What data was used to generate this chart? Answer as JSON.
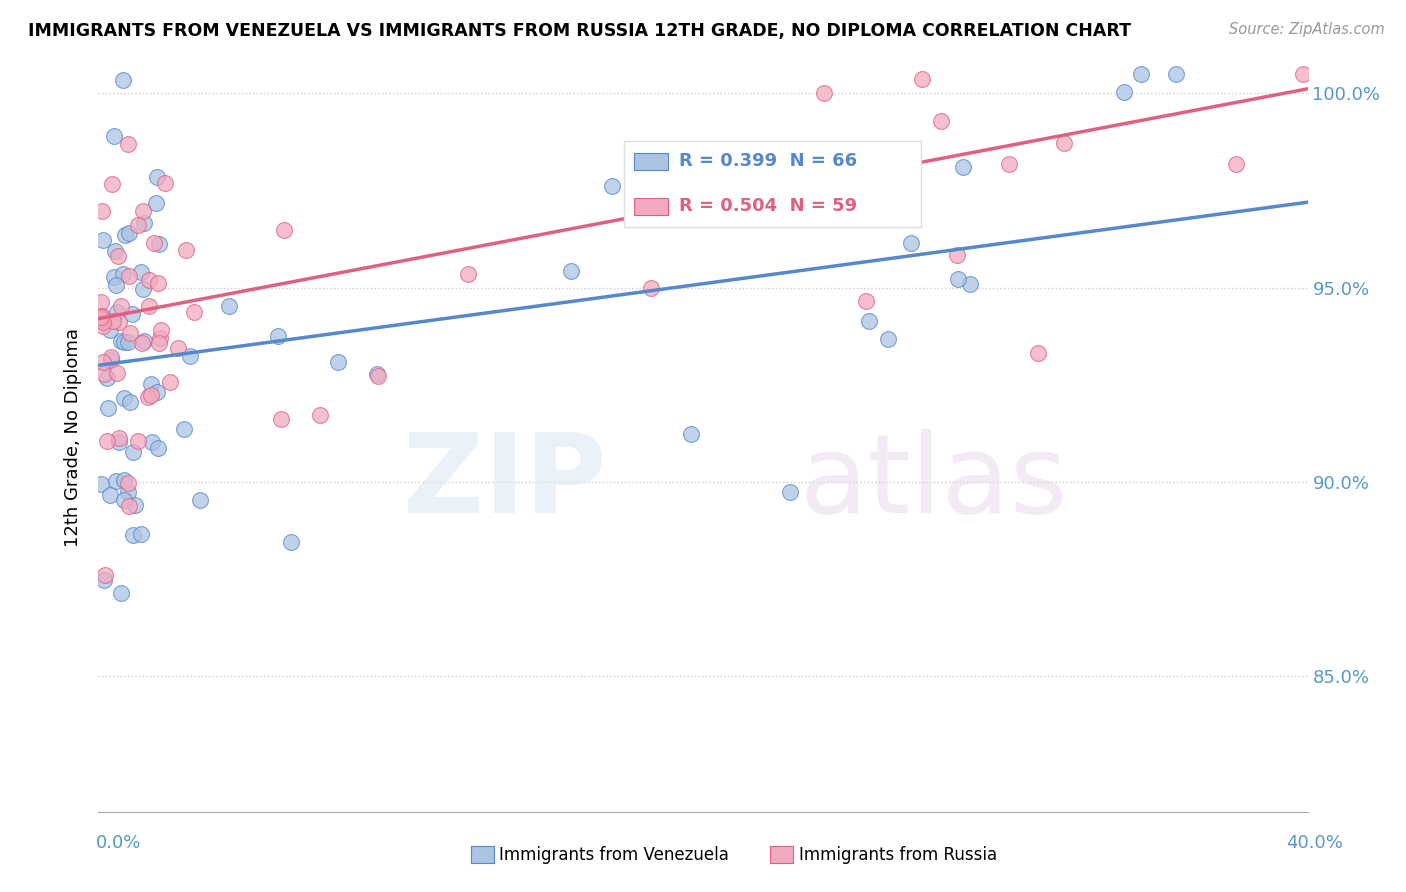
{
  "title": "IMMIGRANTS FROM VENEZUELA VS IMMIGRANTS FROM RUSSIA 12TH GRADE, NO DIPLOMA CORRELATION CHART",
  "source": "Source: ZipAtlas.com",
  "ylabel_label": "12th Grade, No Diploma",
  "legend_venezuela": "R = 0.399  N = 66",
  "legend_russia": "R = 0.504  N = 59",
  "color_venezuela": "#aac4e2",
  "color_russia": "#f2aac0",
  "color_venezuela_line": "#5588cc",
  "color_russia_line": "#e06080",
  "xlim": [
    0.0,
    0.4
  ],
  "ylim": [
    0.815,
    1.008
  ],
  "yticks": [
    0.85,
    0.9,
    0.95,
    1.0
  ],
  "ytick_labels": [
    "85.0%",
    "90.0%",
    "95.0%",
    "100.0%"
  ],
  "ven_intercept": 0.93,
  "ven_slope": 0.105,
  "rus_intercept": 0.942,
  "rus_slope": 0.148
}
